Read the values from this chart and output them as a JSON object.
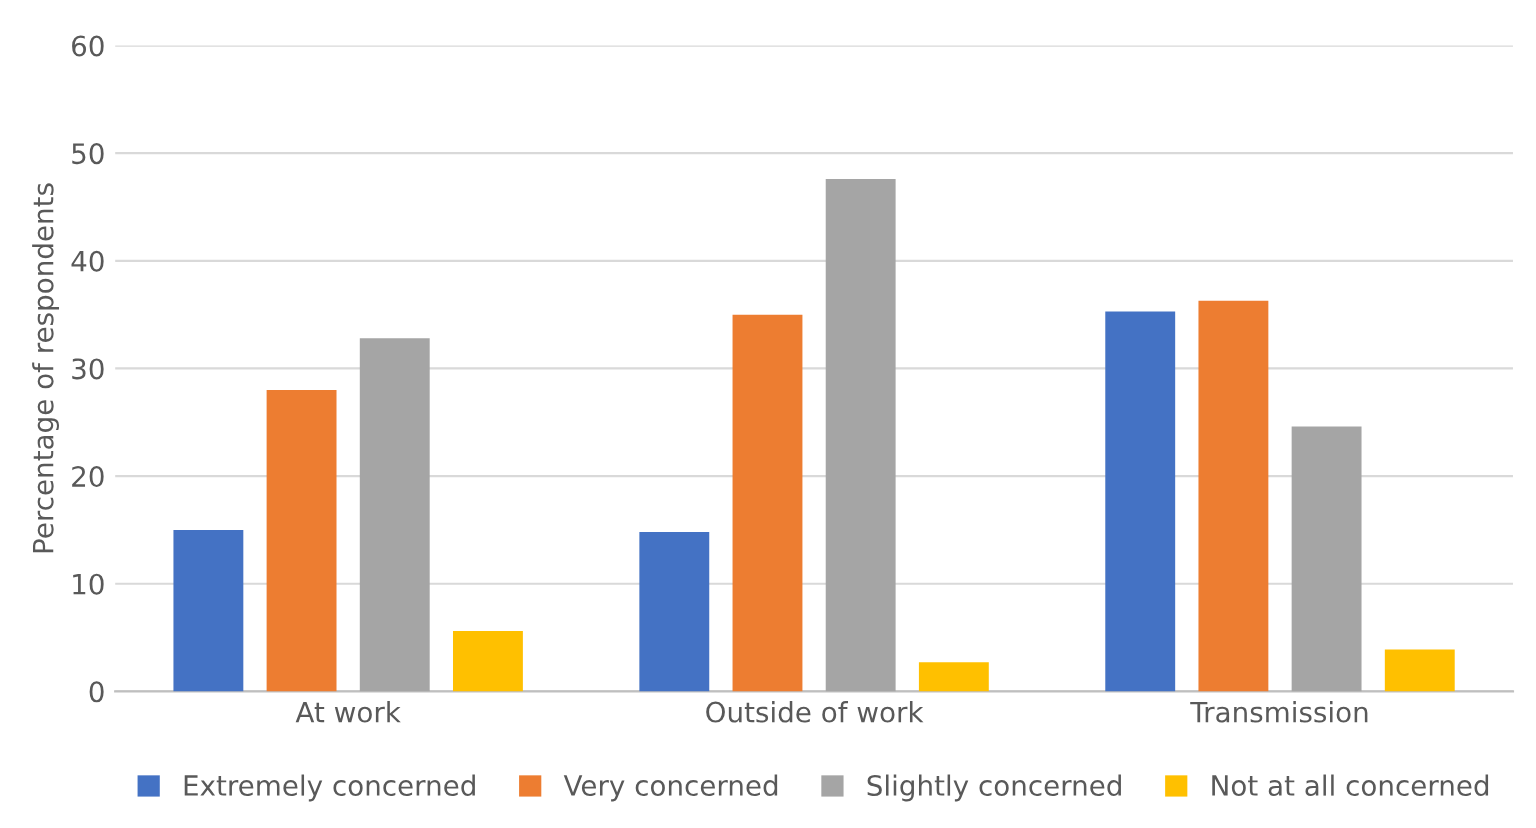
{
  "chart_data": {
    "type": "bar",
    "ylabel": "Percentage of respondents",
    "categories": [
      "At work",
      "Outside of work",
      "Transmission"
    ],
    "series": [
      {
        "name": "Extremely concerned",
        "color": "#4472c4",
        "values": [
          15.0,
          14.8,
          35.3
        ]
      },
      {
        "name": "Very concerned",
        "color": "#ed7d31",
        "values": [
          28.0,
          35.0,
          36.3
        ]
      },
      {
        "name": "Slightly concerned",
        "color": "#a5a5a5",
        "values": [
          32.8,
          47.6,
          24.6
        ]
      },
      {
        "name": "Not at all concerned",
        "color": "#ffc000",
        "values": [
          5.6,
          2.7,
          3.9
        ]
      }
    ],
    "ylim": [
      0,
      60
    ],
    "yticks": [
      0,
      10,
      20,
      30,
      40,
      50,
      60
    ],
    "grid": "y",
    "legend": "bottom"
  }
}
